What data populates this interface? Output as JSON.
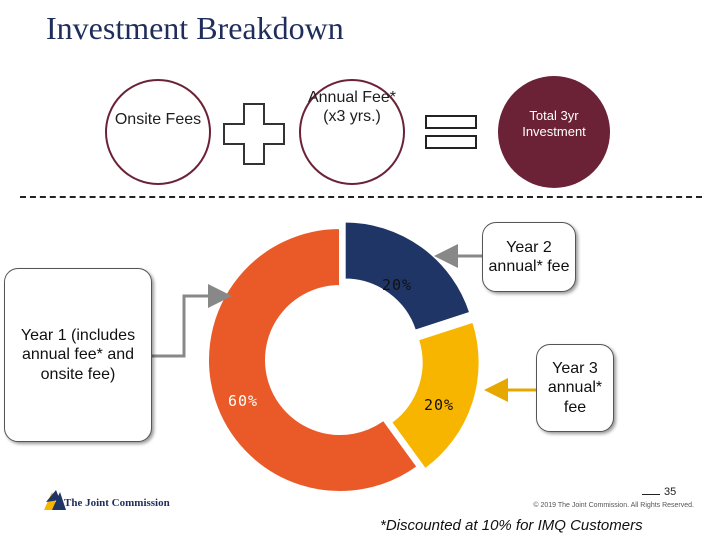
{
  "title": "Investment Breakdown",
  "equation": {
    "onsite": "Onsite Fees",
    "annual": "Annual Fee* (x3 yrs.)",
    "total": "Total 3yr Investment"
  },
  "chart_data": {
    "type": "pie",
    "categories": [
      "Year 2 annual* fee",
      "Year 3 annual* fee",
      "Year 1 (includes annual fee* and onsite fee)"
    ],
    "values": [
      20,
      20,
      60
    ],
    "labels": [
      "20%",
      "20%",
      "60%"
    ]
  },
  "callouts": {
    "year1": "Year 1 (includes annual fee* and onsite fee)",
    "year2": "Year 2 annual* fee",
    "year3": "Year 3 annual* fee"
  },
  "colors": {
    "year2": "#1f3566",
    "year3": "#f7b500",
    "year1": "#ea5a28",
    "total": "#6b2236"
  },
  "footer": {
    "page": "35",
    "copyright": "© 2019 The Joint Commission. All Rights Reserved.",
    "footnote": "*Discounted at 10% for IMQ Customers",
    "logo": "The Joint Commission"
  }
}
